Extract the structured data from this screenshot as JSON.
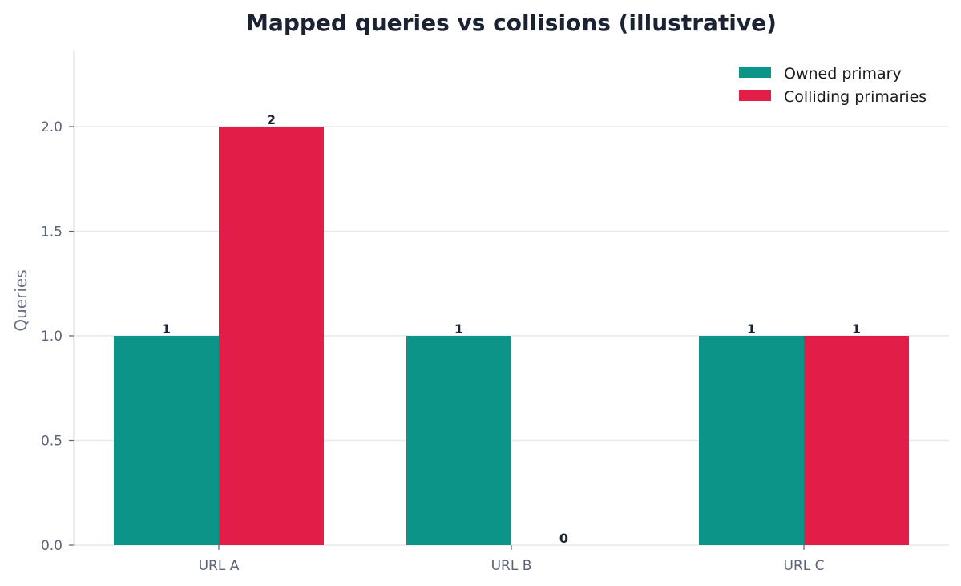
{
  "chart_data": {
    "type": "bar",
    "title": "Mapped queries vs collisions (illustrative)",
    "xlabel": "",
    "ylabel": "Queries",
    "categories": [
      "URL A",
      "URL B",
      "URL C"
    ],
    "series": [
      {
        "name": "Owned primary",
        "values": [
          1,
          1,
          1
        ],
        "color": "#0d9488"
      },
      {
        "name": "Colliding primaries",
        "values": [
          2,
          0,
          1
        ],
        "color": "#e11d48"
      }
    ],
    "data_labels": [
      [
        "1",
        "1",
        "1"
      ],
      [
        "2",
        "0",
        "1"
      ]
    ],
    "ylim": [
      0,
      2.35
    ],
    "yticks": [
      "0.0",
      "0.5",
      "1.0",
      "1.5",
      "2.0"
    ],
    "ytick_values": [
      0,
      0.5,
      1.0,
      1.5,
      2.0
    ],
    "grid": true,
    "legend_position": "top-right"
  }
}
